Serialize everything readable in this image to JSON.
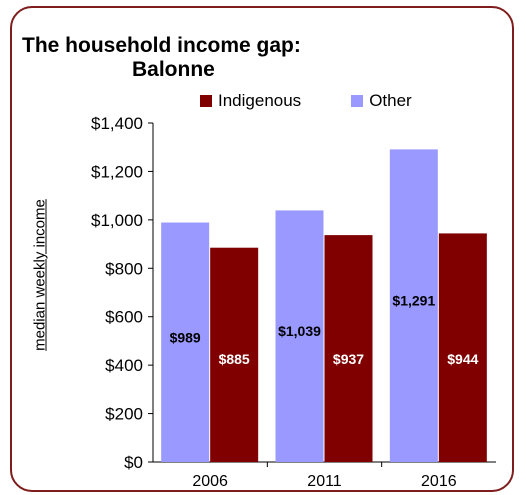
{
  "title_line1": "The household income gap:",
  "title_line2": "Balonne",
  "chart_data": {
    "type": "bar",
    "title": "The household income gap: Balonne",
    "ylabel": "median weekly income",
    "xlabel": "",
    "categories": [
      "2006",
      "2011",
      "2016"
    ],
    "series": [
      {
        "name": "Other",
        "color": "#9999ff",
        "values": [
          989,
          1039,
          1291
        ],
        "labels": [
          "$989",
          "$1,039",
          "$1,291"
        ]
      },
      {
        "name": "Indigenous",
        "color": "#800000",
        "values": [
          885,
          937,
          944
        ],
        "labels": [
          "$885",
          "$937",
          "$944"
        ]
      }
    ],
    "legend_order": [
      "Indigenous",
      "Other"
    ],
    "ylim": [
      0,
      1400
    ],
    "yticks": [
      0,
      200,
      400,
      600,
      800,
      1000,
      1200,
      1400
    ],
    "ytick_labels": [
      "$0",
      "$200",
      "$400",
      "$600",
      "$800",
      "$1,000",
      "$1,200",
      "$1,400"
    ],
    "grid": false,
    "legend_position": "top"
  }
}
